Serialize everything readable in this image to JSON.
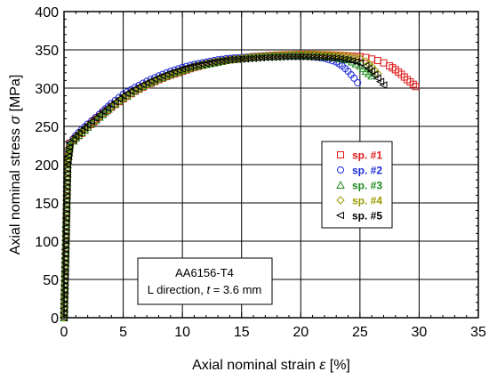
{
  "chart_data": {
    "type": "scatter",
    "xlabel": {
      "prefix": "Axial nominal strain ",
      "symbol": "ε",
      "suffix": " [%]"
    },
    "ylabel": {
      "prefix": "Axial nominal stress ",
      "symbol": "σ",
      "suffix": " [MPa]"
    },
    "xlim": [
      0,
      35
    ],
    "ylim": [
      0,
      400
    ],
    "x_ticks": [
      0,
      5,
      10,
      15,
      20,
      25,
      30,
      35
    ],
    "y_ticks": [
      0,
      50,
      100,
      150,
      200,
      250,
      300,
      350,
      400
    ],
    "x_tick_labels": [
      "0",
      "5",
      "10",
      "15",
      "20",
      "25",
      "30",
      "35"
    ],
    "y_tick_labels": [
      "0",
      "50",
      "100",
      "150",
      "200",
      "250",
      "300",
      "350",
      "400"
    ],
    "grid": true,
    "legend_position": "center-right",
    "annotation": {
      "line1": "AA6156-T4",
      "line2_prefix": "L direction, ",
      "line2_symbol": "t",
      "line2_suffix": " = 3.6 mm"
    },
    "series": [
      {
        "name": "sp. #1",
        "marker": "square",
        "color": "#e01818",
        "x": [
          0,
          0.1,
          0.2,
          0.3,
          0.5,
          0.8,
          1,
          1.5,
          2,
          2.5,
          3,
          4,
          5,
          6,
          7,
          8,
          9,
          10,
          11,
          12,
          13,
          14,
          15,
          16,
          17,
          18,
          19,
          20,
          21,
          22,
          23,
          24,
          25,
          25.5,
          26,
          26.5,
          27,
          27.5,
          28,
          28.5,
          29,
          29.5,
          29.7
        ],
        "y": [
          0,
          60,
          130,
          200,
          228,
          232,
          235,
          241,
          249,
          256,
          263,
          275,
          286,
          296,
          304,
          311,
          317,
          322,
          327,
          331,
          334,
          337,
          339,
          341,
          342,
          343,
          343.5,
          344,
          344,
          343.5,
          343,
          342,
          341,
          340,
          338,
          336,
          333,
          329,
          324,
          318,
          311,
          305,
          302
        ]
      },
      {
        "name": "sp. #2",
        "marker": "circle",
        "color": "#1c28d8",
        "x": [
          0,
          0.1,
          0.2,
          0.3,
          0.5,
          0.8,
          1,
          1.5,
          2,
          3,
          4,
          5,
          6,
          7,
          8,
          9,
          10,
          11,
          12,
          13,
          14,
          15,
          16,
          17,
          18,
          19,
          20,
          21,
          22,
          23,
          23.5,
          24,
          24.5,
          24.8
        ],
        "y": [
          0,
          60,
          130,
          200,
          228,
          234,
          238,
          246,
          253,
          266,
          280,
          292,
          301,
          309,
          316,
          322,
          327,
          331,
          334,
          337,
          339,
          340,
          341,
          342,
          342.5,
          342.5,
          342,
          341,
          339,
          334,
          329,
          322,
          313,
          307
        ]
      },
      {
        "name": "sp. #3",
        "marker": "triangle",
        "color": "#1a8a1a",
        "x": [
          0,
          0.1,
          0.2,
          0.3,
          0.5,
          0.8,
          1,
          1.5,
          2,
          3,
          4,
          5,
          6,
          7,
          8,
          9,
          10,
          11,
          12,
          13,
          14,
          15,
          16,
          17,
          18,
          19,
          20,
          21,
          22,
          23,
          24,
          25,
          25.5,
          26
        ],
        "y": [
          0,
          60,
          130,
          200,
          226,
          231,
          235,
          242,
          249,
          262,
          276,
          287,
          297,
          305,
          312,
          318,
          323,
          328,
          331,
          334,
          337,
          338.5,
          340,
          341,
          341.5,
          342,
          342,
          342,
          341.5,
          340,
          337,
          329,
          322,
          316
        ]
      },
      {
        "name": "sp. #4",
        "marker": "diamond",
        "color": "#9a9a00",
        "x": [
          0,
          0.1,
          0.2,
          0.3,
          0.5,
          0.8,
          1,
          1.5,
          2,
          3,
          4,
          5,
          6,
          7,
          8,
          9,
          10,
          11,
          12,
          13,
          14,
          15,
          16,
          17,
          18,
          19,
          20,
          21,
          22,
          23,
          24,
          25,
          25.5,
          26,
          26.5
        ],
        "y": [
          0,
          60,
          130,
          200,
          227,
          232,
          236,
          243,
          250,
          263,
          276,
          287,
          297,
          305,
          312,
          318,
          323,
          328,
          332,
          335,
          337,
          339,
          341,
          342,
          343,
          343.5,
          344,
          344,
          343.5,
          343,
          342,
          339,
          335,
          328,
          319
        ]
      },
      {
        "name": "sp. #5",
        "marker": "triangle-left",
        "color": "#000000",
        "x": [
          0,
          0.1,
          0.2,
          0.3,
          0.5,
          0.8,
          1,
          1.5,
          2,
          3,
          4,
          5,
          6,
          7,
          8,
          9,
          10,
          11,
          12,
          13,
          14,
          15,
          16,
          17,
          18,
          19,
          20,
          21,
          22,
          23,
          24,
          25,
          25.5,
          26,
          26.5,
          27
        ],
        "y": [
          0,
          60,
          130,
          200,
          228,
          233,
          237,
          245,
          252,
          265,
          278,
          290,
          299,
          307,
          314,
          320,
          325,
          329,
          332,
          335,
          337,
          338,
          339,
          340,
          340.5,
          341,
          341,
          340.5,
          340,
          339,
          337,
          333,
          329,
          322,
          313,
          304
        ]
      }
    ]
  }
}
